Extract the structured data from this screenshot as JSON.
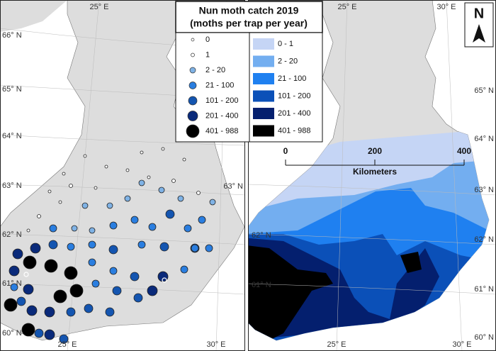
{
  "legend": {
    "title": "Nun moth catch 2019",
    "subtitle": "(moths per trap per year)",
    "point_classes": [
      "0",
      "1",
      "2 - 20",
      "21 - 100",
      "101 - 200",
      "201 - 400",
      "401 - 988"
    ],
    "area_classes": [
      "0 - 1",
      "2 - 20",
      "21 - 100",
      "101 - 200",
      "201 - 400",
      "401 - 988"
    ]
  },
  "left_map": {
    "top_lon_labels": [
      "25° E"
    ],
    "bottom_lon_labels": [
      "25° E",
      "30° E"
    ],
    "lat_labels": [
      "66° N",
      "65° N",
      "64° N",
      "63° N",
      "62° N",
      "61° N",
      "60° N"
    ],
    "right_lat_labels": [
      "63° N"
    ]
  },
  "right_map": {
    "top_lon_labels": [
      "25° E",
      "30° E"
    ],
    "bottom_lon_labels": [
      "25° E",
      "30° E"
    ],
    "lat_labels": [
      "65° N",
      "64° N",
      "63° N",
      "62° N",
      "61° N",
      "60° N"
    ],
    "left_lat_labels": [
      "62° N",
      "61° N"
    ]
  },
  "scale_bar": {
    "ticks": [
      "0",
      "200",
      "400"
    ],
    "unit": "Kilometers"
  },
  "north_arrow": "N"
}
